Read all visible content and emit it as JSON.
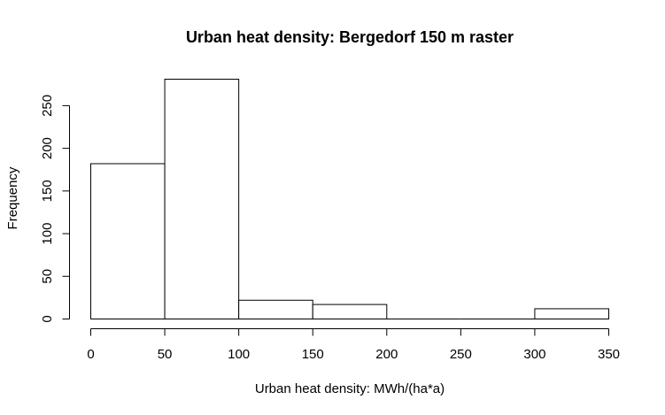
{
  "chart_data": {
    "type": "bar",
    "title": "Urban heat density: Bergedorf 150 m raster",
    "xlabel": "Urban heat density: MWh/(ha*a)",
    "ylabel": "Frequency",
    "bins": [
      {
        "from": 0,
        "to": 50,
        "count": 182
      },
      {
        "from": 50,
        "to": 100,
        "count": 281
      },
      {
        "from": 100,
        "to": 150,
        "count": 22
      },
      {
        "from": 150,
        "to": 200,
        "count": 17
      },
      {
        "from": 200,
        "to": 250,
        "count": 0
      },
      {
        "from": 250,
        "to": 300,
        "count": 0
      },
      {
        "from": 300,
        "to": 350,
        "count": 12
      }
    ],
    "xlim": [
      0,
      350
    ],
    "ylim": [
      0,
      281
    ],
    "xticks": [
      "0",
      "50",
      "100",
      "150",
      "200",
      "250",
      "300",
      "350"
    ],
    "yticks": [
      "0",
      "50",
      "100",
      "150",
      "200",
      "250"
    ],
    "grid": false
  }
}
